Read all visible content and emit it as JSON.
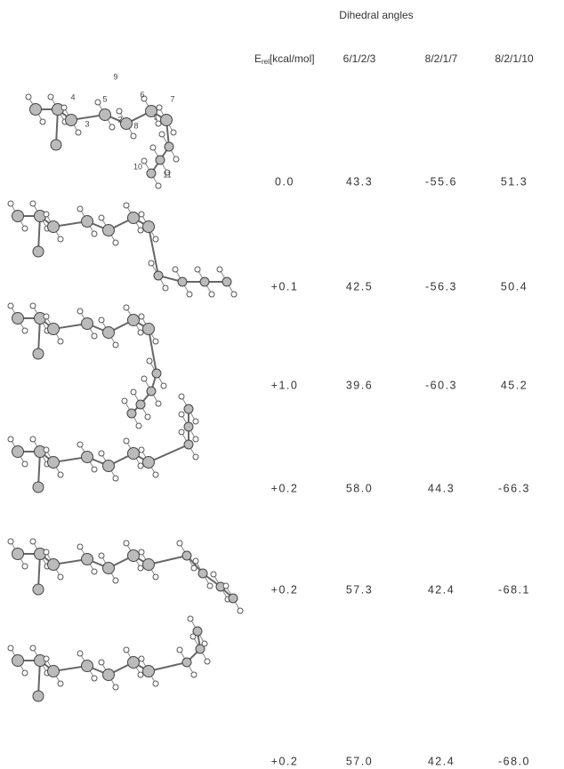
{
  "table": {
    "title": "Dihedral angles",
    "energy_header": {
      "symbol": "E",
      "subscript": "rel",
      "unit": "[kcal/mol]"
    },
    "angle_headers": [
      "6/1/2/3",
      "8/2/1/7",
      "8/2/1/10"
    ],
    "rows": [
      [
        "0.0",
        "43.3",
        "-55.6",
        "51.3"
      ],
      [
        "+0.1",
        "42.5",
        "-56.3",
        "50.4"
      ],
      [
        "+1.0",
        "39.6",
        "-60.3",
        "45.2"
      ],
      [
        "+0.2",
        "58.0",
        "44.3",
        "-66.3"
      ],
      [
        "+0.2",
        "57.3",
        "42.4",
        "-68.1"
      ],
      [
        "+0.2",
        "57.0",
        "42.4",
        "-68.0"
      ]
    ]
  },
  "atom_labels": [
    "4",
    "9",
    "5",
    "6",
    "7",
    "3",
    "2",
    "8",
    "1",
    "10",
    "11"
  ]
}
